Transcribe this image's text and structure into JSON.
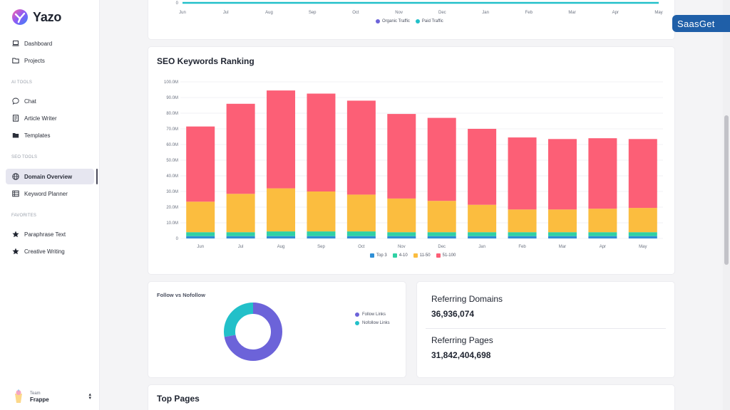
{
  "app": {
    "name": "Yazo"
  },
  "sidebar": {
    "items_top": [
      {
        "label": "Dashboard",
        "icon": "laptop-icon"
      },
      {
        "label": "Projects",
        "icon": "folder-icon"
      }
    ],
    "section_ai": "AI TOOLS",
    "items_ai": [
      {
        "label": "Chat",
        "icon": "chat-icon"
      },
      {
        "label": "Article Writer",
        "icon": "document-icon"
      },
      {
        "label": "Templates",
        "icon": "folder-open-icon"
      }
    ],
    "section_seo": "SEO TOOLS",
    "items_seo": [
      {
        "label": "Domain Overview",
        "icon": "globe-icon",
        "active": true
      },
      {
        "label": "Keyword Planner",
        "icon": "table-icon"
      }
    ],
    "section_fav": "FAVORITES",
    "items_fav": [
      {
        "label": "Paraphrase Text",
        "icon": "star-icon"
      },
      {
        "label": "Creative Writing",
        "icon": "star-icon"
      }
    ],
    "team": {
      "label": "Team",
      "name": "Frappe"
    }
  },
  "traffic_chart": {
    "y_tick": "0",
    "months": [
      "Jun",
      "Jul",
      "Aug",
      "Sep",
      "Oct",
      "Nov",
      "Dec",
      "Jan",
      "Feb",
      "Mar",
      "Apr",
      "May"
    ],
    "legend": [
      {
        "label": "Organic Traffic",
        "color": "#6c63d9"
      },
      {
        "label": "Paid Traffic",
        "color": "#22c0c9"
      }
    ],
    "line_color": "#22c0c9"
  },
  "seo_title": "SEO Keywords Ranking",
  "chart_data": {
    "type": "bar",
    "stacked": true,
    "title": "SEO Keywords Ranking",
    "categories": [
      "Jun",
      "Jul",
      "Aug",
      "Sep",
      "Oct",
      "Nov",
      "Dec",
      "Jan",
      "Feb",
      "Mar",
      "Apr",
      "May"
    ],
    "y_ticks": [
      "0",
      "10.0M",
      "20.0M",
      "30.0M",
      "40.0M",
      "50.0M",
      "60.0M",
      "70.0M",
      "80.0M",
      "90.0M",
      "100.0M"
    ],
    "ylim": [
      0,
      100
    ],
    "y_unit": "M",
    "series": [
      {
        "name": "Top 3",
        "color": "#2f8fd6",
        "values": [
          1.5,
          1.5,
          1.5,
          1.5,
          1.5,
          1.5,
          1.5,
          1.5,
          1.5,
          1.5,
          1.5,
          1.5
        ]
      },
      {
        "name": "4-10",
        "color": "#2fd1a4",
        "values": [
          2.5,
          2.5,
          3.0,
          3.0,
          3.0,
          2.5,
          2.5,
          2.5,
          2.5,
          2.5,
          2.5,
          2.5
        ]
      },
      {
        "name": "11-50",
        "color": "#fbbd3f",
        "values": [
          19.5,
          24.5,
          27.5,
          25.5,
          23.5,
          21.5,
          20.0,
          17.5,
          14.5,
          14.5,
          15.0,
          15.5
        ]
      },
      {
        "name": "51-100",
        "color": "#fc5f76",
        "values": [
          48.0,
          57.5,
          62.5,
          62.5,
          60.0,
          54.0,
          53.0,
          48.5,
          46.0,
          45.0,
          45.0,
          44.0
        ]
      }
    ]
  },
  "follow": {
    "title": "Follow vs Nofollow",
    "legend": [
      {
        "label": "Follow Links",
        "color": "#6c63d9",
        "value": 72
      },
      {
        "label": "Nofollow Links",
        "color": "#22c0c9",
        "value": 28
      }
    ]
  },
  "referring": {
    "domains_label": "Referring Domains",
    "domains_value": "36,936,074",
    "pages_label": "Referring Pages",
    "pages_value": "31,842,404,698"
  },
  "top_pages_title": "Top Pages",
  "watermark": "SaasGet"
}
